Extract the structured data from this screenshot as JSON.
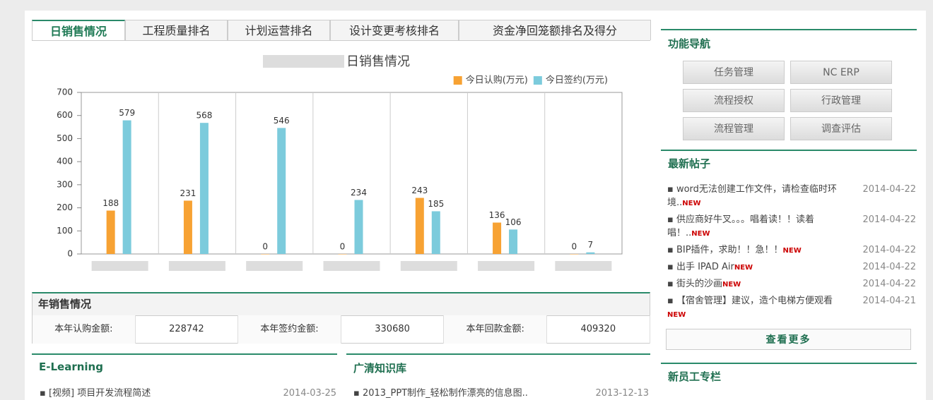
{
  "tabs": [
    "日销售情况",
    "工程质量排名",
    "计划运营排名",
    "设计变更考核排名",
    "资金净回笼额排名及得分"
  ],
  "chart_data": {
    "type": "bar",
    "title": "日销售情况",
    "categories": [
      null,
      null,
      null,
      null,
      null,
      null,
      null
    ],
    "series": [
      {
        "name": "今日认购(万元)",
        "color": "#f7a233",
        "values": [
          188,
          231,
          0,
          0,
          243,
          136,
          0
        ]
      },
      {
        "name": "今日签约(万元)",
        "color": "#7ccbdc",
        "values": [
          579,
          568,
          546,
          234,
          185,
          106,
          7
        ]
      }
    ],
    "ylim": [
      0,
      700
    ],
    "yticks": [
      0,
      100,
      200,
      300,
      400,
      500,
      600,
      700
    ],
    "grid": false,
    "legend": "top-right"
  },
  "annual": {
    "title": "年销售情况",
    "cells": [
      [
        "本年认购金额:",
        "228742"
      ],
      [
        "本年签约金额:",
        "330680"
      ],
      [
        "本年回款金额:",
        "409320"
      ]
    ]
  },
  "elearning": {
    "title": "E-Learning",
    "items": [
      {
        "text": "[视频] 项目开发流程简述",
        "date": "2014-03-25"
      }
    ]
  },
  "knowledge": {
    "title": "广清知识库",
    "items": [
      {
        "text": "2013_PPT制作_轻松制作漂亮的信息图..",
        "date": "2013-12-13"
      }
    ]
  },
  "nav": {
    "title": "功能导航",
    "buttons": [
      "任务管理",
      "NC ERP",
      "流程授权",
      "行政管理",
      "流程管理",
      "调查评估"
    ]
  },
  "posts": {
    "title": "最新帖子",
    "items": [
      {
        "text": "word无法创建工作文件，请检查临时环境..",
        "badge": "NEW",
        "date": "2014-04-22"
      },
      {
        "text": "供应商好牛叉。。。唱着读！！读着唱！..",
        "badge": "NEW",
        "date": "2014-04-22"
      },
      {
        "text": "BIP插件，求助！！急！！",
        "badge": "NEW",
        "date": "2014-04-22"
      },
      {
        "text": "出手 IPAD Air",
        "badge": "NEW",
        "date": "2014-04-22"
      },
      {
        "text": "街头的沙画",
        "badge": "NEW",
        "date": "2014-04-22"
      },
      {
        "text": "【宿舍管理】建议，造个电梯方便观看",
        "badge": "NEW",
        "date": "2014-04-21"
      }
    ],
    "more": "查看更多"
  },
  "newstaff": {
    "title": "新员工专栏"
  }
}
